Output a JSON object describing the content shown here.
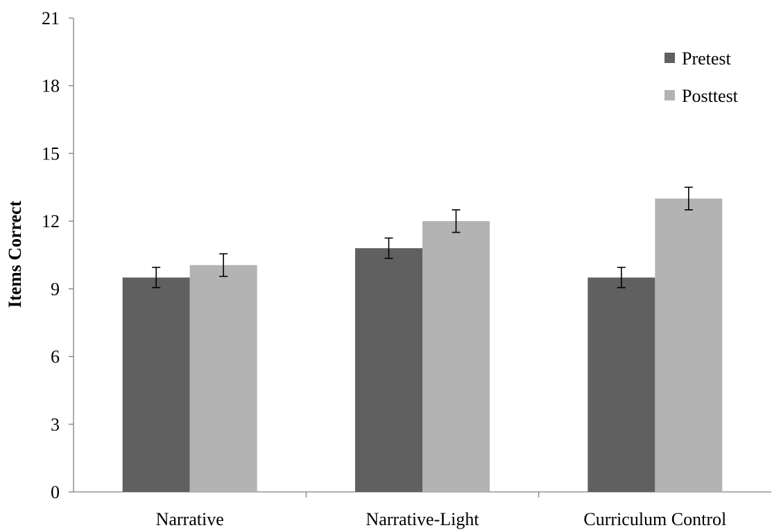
{
  "chart_data": {
    "type": "bar",
    "title": "",
    "xlabel": "",
    "ylabel": "Items Correct",
    "ylim": [
      0,
      21
    ],
    "yticks": [
      0,
      3,
      6,
      9,
      12,
      15,
      18,
      21
    ],
    "grid": false,
    "legend_position": "top-right",
    "categories": [
      "Narrative",
      "Narrative-Light",
      "Curriculum Control"
    ],
    "series": [
      {
        "name": "Pretest",
        "color": "#606060",
        "values": [
          9.5,
          10.8,
          9.5
        ],
        "errors": [
          0.45,
          0.45,
          0.45
        ]
      },
      {
        "name": "Posttest",
        "color": "#b3b3b3",
        "values": [
          10.05,
          12.0,
          13.0
        ],
        "errors": [
          0.5,
          0.5,
          0.5
        ]
      }
    ]
  }
}
